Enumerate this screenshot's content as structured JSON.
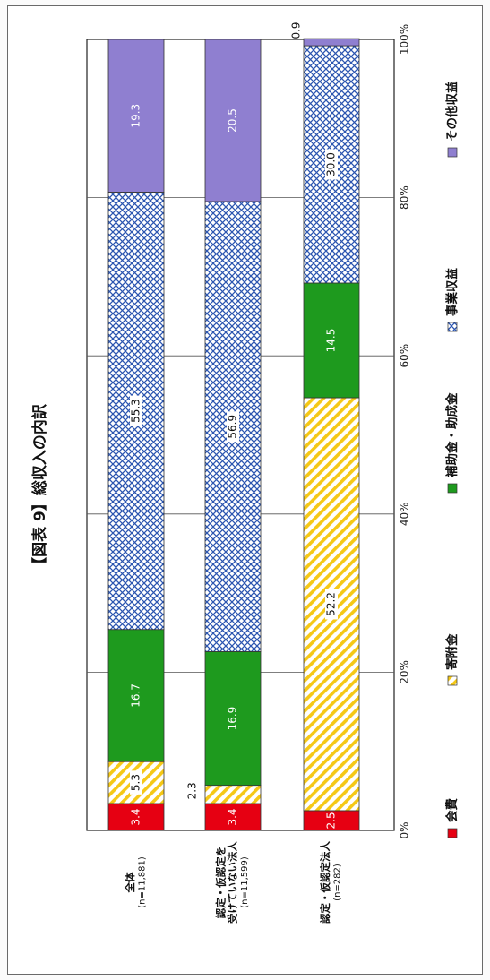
{
  "chart_data": {
    "type": "bar",
    "orientation": "horizontal-stacked-100",
    "title": "【図表 9】総収入の内訳",
    "categories": [
      {
        "name": "全体",
        "n": "(n=11,881)"
      },
      {
        "name": "認定・仮認定を受けていない法人",
        "name_lines": [
          "認定・仮認定を",
          "受けていない法人"
        ],
        "n": "(n=11,599)"
      },
      {
        "name": "認定・仮認定法人",
        "n": "(n=282)"
      }
    ],
    "series": [
      {
        "name": "会費",
        "values": [
          3.4,
          3.4,
          2.5
        ],
        "labels": [
          "3.4",
          "3.4",
          "2.5"
        ],
        "color": "#e60012",
        "pattern": "solid"
      },
      {
        "name": "寄附金",
        "values": [
          5.3,
          2.3,
          52.2
        ],
        "labels": [
          "5.3",
          "2.3",
          "52.2"
        ],
        "color": "#f5c816",
        "pattern": "diagonal-stripes"
      },
      {
        "name": "補助金・助成金",
        "values": [
          16.7,
          16.9,
          14.5
        ],
        "labels": [
          "16.7",
          "16.9",
          "14.5"
        ],
        "color": "#1e9a1e",
        "pattern": "solid"
      },
      {
        "name": "事業収益",
        "values": [
          55.3,
          56.9,
          30.0
        ],
        "labels": [
          "55.3",
          "56.9",
          "30.0"
        ],
        "color": "#2b55b0",
        "pattern": "crosshatch"
      },
      {
        "name": "その他収益",
        "values": [
          19.3,
          20.5,
          0.9
        ],
        "labels": [
          "19.3",
          "20.5",
          "0.9"
        ],
        "color": "#8f7fd0",
        "pattern": "solid"
      }
    ],
    "x_ticks": [
      "0%",
      "20%",
      "40%",
      "60%",
      "80%",
      "100%"
    ],
    "xlim": [
      0,
      100
    ],
    "grid": true,
    "legend_position": "bottom"
  }
}
